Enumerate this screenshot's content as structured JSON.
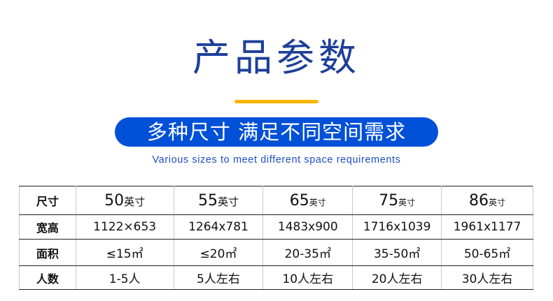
{
  "title": "产品参数",
  "banner": "多种尺寸 满足不同空间需求",
  "subtitle_en": "Various sizes to meet different space requirements",
  "colors": {
    "title": "#1d3f9a",
    "accent_bar": "#ffb400",
    "banner": "#0050d8",
    "subtitle": "#1e4fc6"
  },
  "table": {
    "size_row": {
      "label": "尺寸",
      "sizes": [
        {
          "num": "50",
          "unit": "英寸"
        },
        {
          "num": "55",
          "unit": "英寸"
        },
        {
          "num": "65",
          "unit": "英寸"
        },
        {
          "num": "75",
          "unit": "英寸"
        },
        {
          "num": "86",
          "unit": "英寸"
        }
      ]
    },
    "rows": [
      {
        "label": "宽高",
        "values": [
          "1122×653",
          "1264x781",
          "1483x900",
          "1716x1039",
          "1961x1177"
        ]
      },
      {
        "label": "面积",
        "values": [
          "≤15㎡",
          "≤20㎡",
          "20-35㎡",
          "35-50㎡",
          "50-65㎡"
        ]
      },
      {
        "label": "人数",
        "values": [
          "1-5人",
          "5人左右",
          "10人左右",
          "20人左右",
          "30人左右"
        ]
      }
    ]
  }
}
